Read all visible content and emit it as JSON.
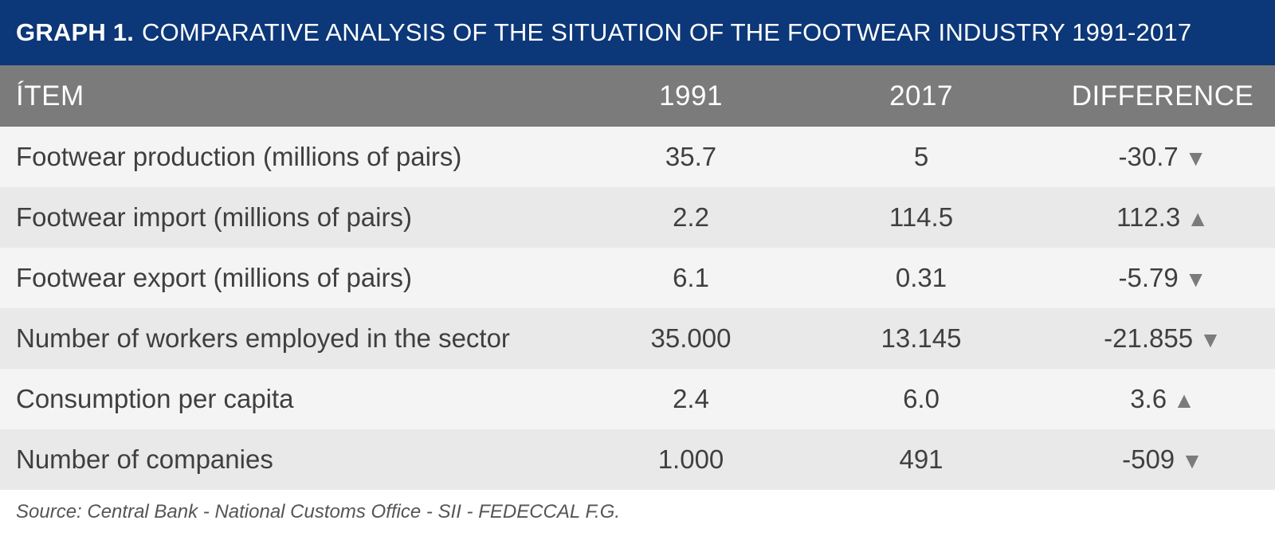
{
  "header": {
    "prefix": "GRAPH 1.",
    "title": "COMPARATIVE ANALYSIS OF THE SITUATION OF THE FOOTWEAR INDUSTRY 1991-2017"
  },
  "table": {
    "columns": [
      "ÍTEM",
      "1991",
      "2017",
      "DIFFERENCE"
    ],
    "rows": [
      {
        "item": "Footwear production (millions of pairs)",
        "y1991": "35.7",
        "y2017": "5",
        "difference": "-30.7",
        "trend": "down"
      },
      {
        "item": "Footwear import (millions of pairs)",
        "y1991": "2.2",
        "y2017": "114.5",
        "difference": "112.3",
        "trend": "up"
      },
      {
        "item": "Footwear export (millions of pairs)",
        "y1991": "6.1",
        "y2017": "0.31",
        "difference": "-5.79",
        "trend": "down"
      },
      {
        "item": "Number of workers employed in the sector",
        "y1991": "35.000",
        "y2017": "13.145",
        "difference": "-21.855",
        "trend": "down"
      },
      {
        "item": "Consumption per capita",
        "y1991": "2.4",
        "y2017": "6.0",
        "difference": "3.6",
        "trend": "up"
      },
      {
        "item": "Number of companies",
        "y1991": "1.000",
        "y2017": "491",
        "difference": "-509",
        "trend": "down"
      }
    ]
  },
  "icons": {
    "up": "triangle-up-icon",
    "down": "triangle-down-icon"
  },
  "colors": {
    "title_bar": "#0c3778",
    "header_row": "#7b7b7b",
    "arrow": "#7b7b7b"
  },
  "source": "Source: Central Bank - National Customs Office - SII - FEDECCAL F.G."
}
